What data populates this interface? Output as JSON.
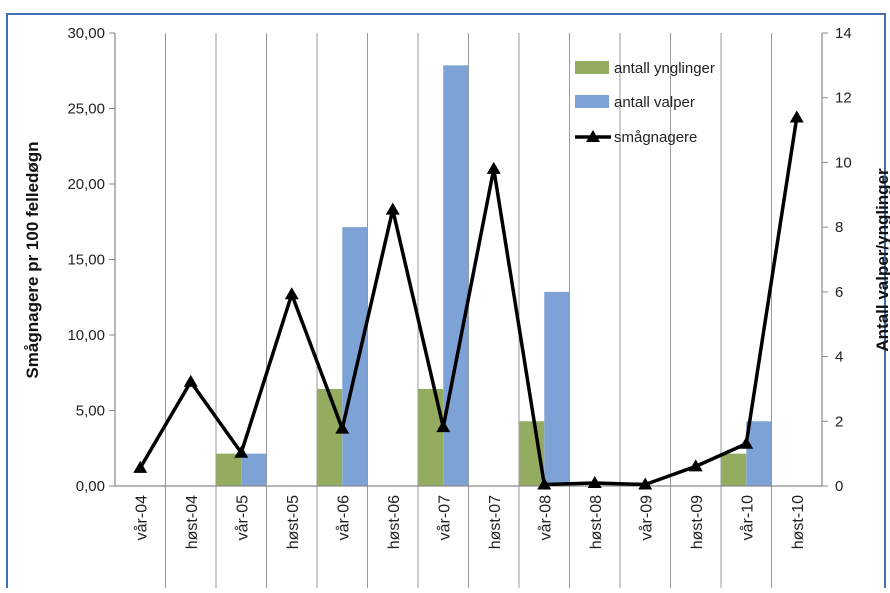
{
  "colors": {
    "frame": "#3f6fb0",
    "bars_ynglinger": "#93ac5f",
    "bars_valper": "#7da3d6",
    "line": "#000000",
    "grid": "#9a9a9a"
  },
  "chart_data": {
    "type": "bar+line",
    "categories": [
      "vår-04",
      "høst-04",
      "vår-05",
      "høst-05",
      "vår-06",
      "høst-06",
      "vår-07",
      "høst-07",
      "vår-08",
      "høst-08",
      "vår-09",
      "høst-09",
      "vår-10",
      "høst-10"
    ],
    "series": [
      {
        "name": "antall ynglinger",
        "type": "bar",
        "axis": "right",
        "values": [
          0,
          0,
          1,
          0,
          3,
          0,
          3,
          0,
          2,
          0,
          0,
          0,
          1,
          0
        ]
      },
      {
        "name": "antall valper",
        "type": "bar",
        "axis": "right",
        "values": [
          0,
          0,
          1,
          0,
          8,
          0,
          13,
          0,
          6,
          0,
          0,
          0,
          2,
          0
        ]
      },
      {
        "name": "smågnagere",
        "type": "line",
        "axis": "left",
        "marker": "triangle",
        "values": [
          1.2,
          6.9,
          2.2,
          12.7,
          3.8,
          18.3,
          3.9,
          21.0,
          0.1,
          0.2,
          0.1,
          1.3,
          2.8,
          24.4
        ]
      }
    ],
    "ylabel": "Smågnagere pr 100 felledøgn",
    "y2label": "Antall valper/ynglinger",
    "ylim": [
      0,
      30
    ],
    "y2lim": [
      0,
      14
    ],
    "yticks": [
      "0,00",
      "5,00",
      "10,00",
      "15,00",
      "20,00",
      "25,00",
      "30,00"
    ],
    "y2ticks": [
      "0",
      "2",
      "4",
      "6",
      "8",
      "10",
      "12",
      "14"
    ],
    "grid": "vertical",
    "legend": "top-right"
  }
}
